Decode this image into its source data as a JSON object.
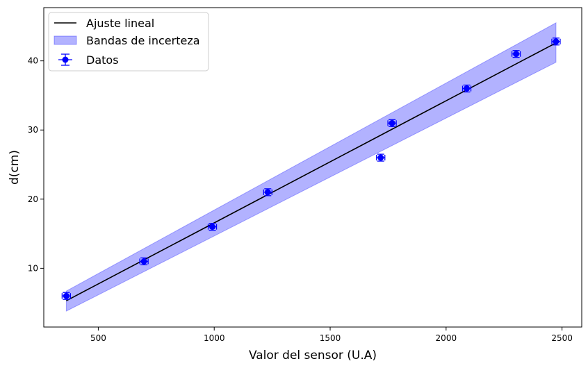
{
  "chart_data": {
    "type": "scatter",
    "title": "",
    "xlabel": "Valor del sensor (U.A)",
    "ylabel": "d(cm)",
    "xlim": [
      265,
      2585
    ],
    "ylim": [
      1.5,
      47.7
    ],
    "xticks": [
      500,
      1000,
      1500,
      2000,
      2500
    ],
    "yticks": [
      10,
      20,
      30,
      40
    ],
    "grid": false,
    "legend_position": "top-left",
    "series": [
      {
        "name": "Datos",
        "kind": "errorbar",
        "color": "#0000ff",
        "x": [
          362,
          697,
          992,
          1231,
          1718,
          1767,
          2089,
          2302,
          2474
        ],
        "y": [
          6,
          11,
          16,
          21,
          26,
          31,
          36,
          41,
          42.8
        ],
        "xerr": 18,
        "yerr": 0.5
      },
      {
        "name": "Ajuste lineal",
        "kind": "line",
        "color": "#000000",
        "x": [
          362,
          2474
        ],
        "y": [
          5.3,
          42.6
        ]
      },
      {
        "name": "Bandas de incerteza",
        "kind": "band",
        "color": "#0000ff",
        "x": [
          362,
          2474
        ],
        "upper": [
          6.7,
          45.5
        ],
        "lower": [
          3.8,
          39.8
        ]
      }
    ]
  }
}
